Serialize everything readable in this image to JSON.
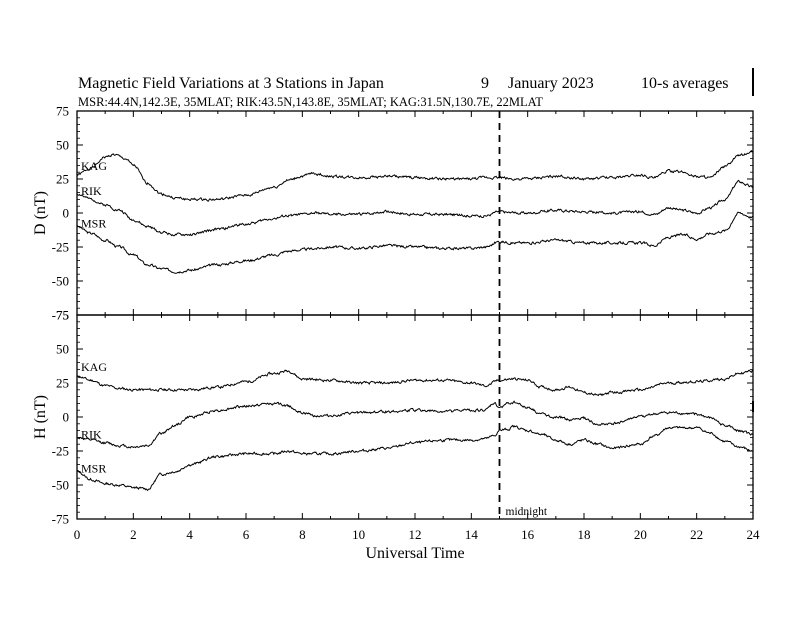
{
  "chart_data": {
    "type": "line",
    "title": "Magnetic Field Variations at 3 Stations in Japan",
    "date_day": "9",
    "date_month_year": "January  2023",
    "averaging": "10-s averages",
    "stations_line": "MSR:44.4N,142.3E, 35MLAT;  RIK:43.5N,143.8E, 35MLAT;  KAG:31.5N,130.7E, 22MLAT",
    "xlabel": "Universal Time",
    "xlim": [
      0,
      24
    ],
    "x_ticks": [
      0,
      2,
      4,
      6,
      8,
      10,
      12,
      14,
      16,
      18,
      20,
      22,
      24
    ],
    "midnight_ut": 15,
    "midnight_label": "midnight",
    "panels": [
      {
        "ylabel": "D (nT)",
        "ylim": [
          -75,
          75
        ],
        "y_ticks": [
          75,
          50,
          25,
          0,
          -25,
          -50,
          -75
        ],
        "series": [
          {
            "name": "KAG",
            "x": [
              0,
              0.5,
              1,
              1.3,
              1.7,
              2,
              2.5,
              3,
              3.5,
              4,
              5,
              6,
              7,
              7.5,
              8,
              8.4,
              9,
              10,
              11,
              12,
              13,
              14,
              14.5,
              15,
              15.5,
              16,
              17,
              18,
              19,
              20,
              20.5,
              21,
              21.5,
              22,
              22.5,
              23,
              23.5,
              24
            ],
            "y": [
              28,
              33,
              41,
              43,
              40,
              35,
              22,
              14,
              11,
              10,
              10,
              13,
              19,
              24,
              27,
              29,
              27,
              26,
              27,
              26,
              25,
              25,
              26,
              26,
              25,
              25,
              27,
              25,
              26,
              28,
              26,
              31,
              30,
              27,
              26,
              34,
              42,
              45
            ]
          },
          {
            "name": "RIK",
            "x": [
              0,
              0.5,
              1,
              1.5,
              2,
              2.5,
              3,
              3.5,
              4,
              5,
              6,
              7,
              7.5,
              8,
              8.5,
              9,
              10,
              11,
              12,
              13,
              14,
              14.5,
              15,
              15.5,
              16,
              17,
              18,
              19,
              20,
              20.5,
              21,
              21.5,
              22,
              22.5,
              23,
              23.5,
              24
            ],
            "y": [
              14,
              10,
              6,
              2,
              -5,
              -10,
              -14,
              -16,
              -16,
              -12,
              -8,
              -4,
              -2,
              -1,
              0,
              -1,
              -1,
              1,
              -1,
              -1,
              -2,
              -2,
              1,
              0,
              0,
              2,
              1,
              0,
              1,
              -1,
              4,
              2,
              0,
              4,
              10,
              23,
              19
            ]
          },
          {
            "name": "MSR",
            "x": [
              0,
              0.5,
              1,
              1.5,
              2,
              2.5,
              3,
              3.5,
              4,
              5,
              6,
              7,
              7.5,
              8,
              8.5,
              9,
              10,
              11,
              12,
              13,
              14,
              14.5,
              15,
              15.5,
              16,
              17,
              18,
              19,
              20,
              20.5,
              21,
              21.5,
              22,
              22.5,
              23,
              23.5,
              24
            ],
            "y": [
              -10,
              -15,
              -20,
              -25,
              -31,
              -38,
              -41,
              -43,
              -42,
              -38,
              -35,
              -31,
              -28,
              -27,
              -26,
              -25,
              -26,
              -24,
              -25,
              -26,
              -26,
              -25,
              -21,
              -22,
              -22,
              -20,
              -22,
              -22,
              -22,
              -24,
              -18,
              -16,
              -19,
              -15,
              -13,
              0,
              -3
            ]
          }
        ]
      },
      {
        "ylabel": "H (nT)",
        "ylim": [
          -75,
          75
        ],
        "y_ticks": [
          75,
          50,
          25,
          0,
          -25,
          -50,
          -75
        ],
        "series": [
          {
            "name": "KAG",
            "x": [
              0,
              0.5,
              1,
              1.5,
              2,
              2.5,
              3,
              3.5,
              4,
              5,
              6,
              7,
              7.5,
              8,
              9,
              10,
              11,
              12,
              13,
              14,
              14.5,
              15,
              15.5,
              16,
              16.5,
              17,
              17.5,
              18,
              18.5,
              19,
              20,
              21,
              22,
              23,
              23.5,
              24
            ],
            "y": [
              30,
              27,
              23,
              21,
              20,
              20,
              20,
              20,
              20,
              22,
              26,
              32,
              34,
              28,
              27,
              25,
              25,
              27,
              27,
              25,
              23,
              27,
              28,
              27,
              22,
              20,
              22,
              18,
              16,
              18,
              20,
              25,
              26,
              28,
              32,
              34
            ]
          },
          {
            "name": "RIK",
            "x": [
              0,
              0.5,
              1,
              1.5,
              2,
              2.5,
              3,
              3.5,
              4,
              5,
              6,
              7,
              7.5,
              8,
              8.5,
              9,
              10,
              11,
              12,
              13,
              14,
              14.5,
              14.8,
              15,
              15.3,
              15.5,
              16,
              16.5,
              17,
              17.5,
              18,
              18.5,
              19,
              20,
              20.5,
              21,
              22,
              22.5,
              23,
              23.5,
              24
            ],
            "y": [
              -15,
              -17,
              -19,
              -21,
              -22,
              -21,
              -12,
              -6,
              0,
              5,
              8,
              10,
              8,
              3,
              1,
              1,
              3,
              4,
              5,
              4,
              5,
              5,
              10,
              7,
              10,
              11,
              7,
              2,
              0,
              -2,
              -1,
              -6,
              -5,
              0,
              2,
              3,
              2,
              -1,
              -6,
              -10,
              -13
            ]
          },
          {
            "name": "MSR",
            "x": [
              0,
              0.5,
              1,
              1.5,
              2,
              2.5,
              3,
              3.5,
              4,
              5,
              6,
              7,
              7.5,
              8,
              9,
              10,
              11,
              12,
              13,
              14,
              14.5,
              14.8,
              15,
              15.3,
              15.5,
              16,
              16.5,
              17,
              17.5,
              18,
              18.5,
              19,
              20,
              20.5,
              21,
              22,
              22.5,
              23,
              23.5,
              24
            ],
            "y": [
              -40,
              -46,
              -49,
              -50,
              -52,
              -53,
              -42,
              -40,
              -35,
              -29,
              -27,
              -27,
              -25,
              -27,
              -27,
              -25,
              -23,
              -19,
              -17,
              -17,
              -16,
              -14,
              -10,
              -9,
              -7,
              -10,
              -13,
              -17,
              -20,
              -17,
              -20,
              -23,
              -20,
              -14,
              -8,
              -8,
              -12,
              -18,
              -22,
              -25
            ]
          }
        ]
      }
    ]
  }
}
